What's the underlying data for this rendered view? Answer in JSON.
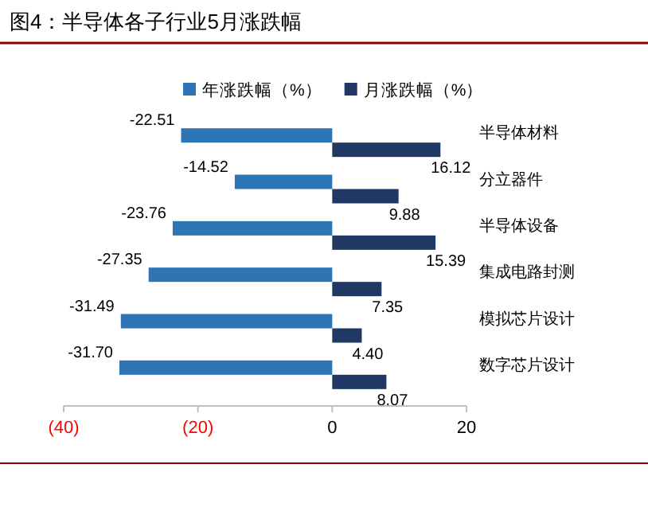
{
  "chart_data": {
    "type": "bar",
    "orientation": "horizontal",
    "title": "图4：半导体各子行业5月涨跌幅",
    "categories": [
      "半导体材料",
      "分立器件",
      "半导体设备",
      "集成电路封测",
      "模拟芯片设计",
      "数字芯片设计"
    ],
    "series": [
      {
        "name": "年涨跌幅（%）",
        "color": "#2e75b6",
        "values": [
          -22.51,
          -14.52,
          -23.76,
          -27.35,
          -31.49,
          -31.7
        ],
        "value_labels": [
          "-22.51",
          "-14.52",
          "-23.76",
          "-27.35",
          "-31.49",
          "-31.70"
        ]
      },
      {
        "name": "月涨跌幅（%）",
        "color": "#1f3864",
        "values": [
          16.12,
          9.88,
          15.39,
          7.35,
          4.4,
          8.07
        ],
        "value_labels": [
          "16.12",
          "9.88",
          "15.39",
          "7.35",
          "4.40",
          "8.07"
        ]
      }
    ],
    "xlim": [
      -40,
      20
    ],
    "xticks": [
      {
        "value": -40,
        "label": "(40)"
      },
      {
        "value": -20,
        "label": "(20)"
      },
      0,
      20
    ],
    "legend": "top",
    "grid": false
  }
}
